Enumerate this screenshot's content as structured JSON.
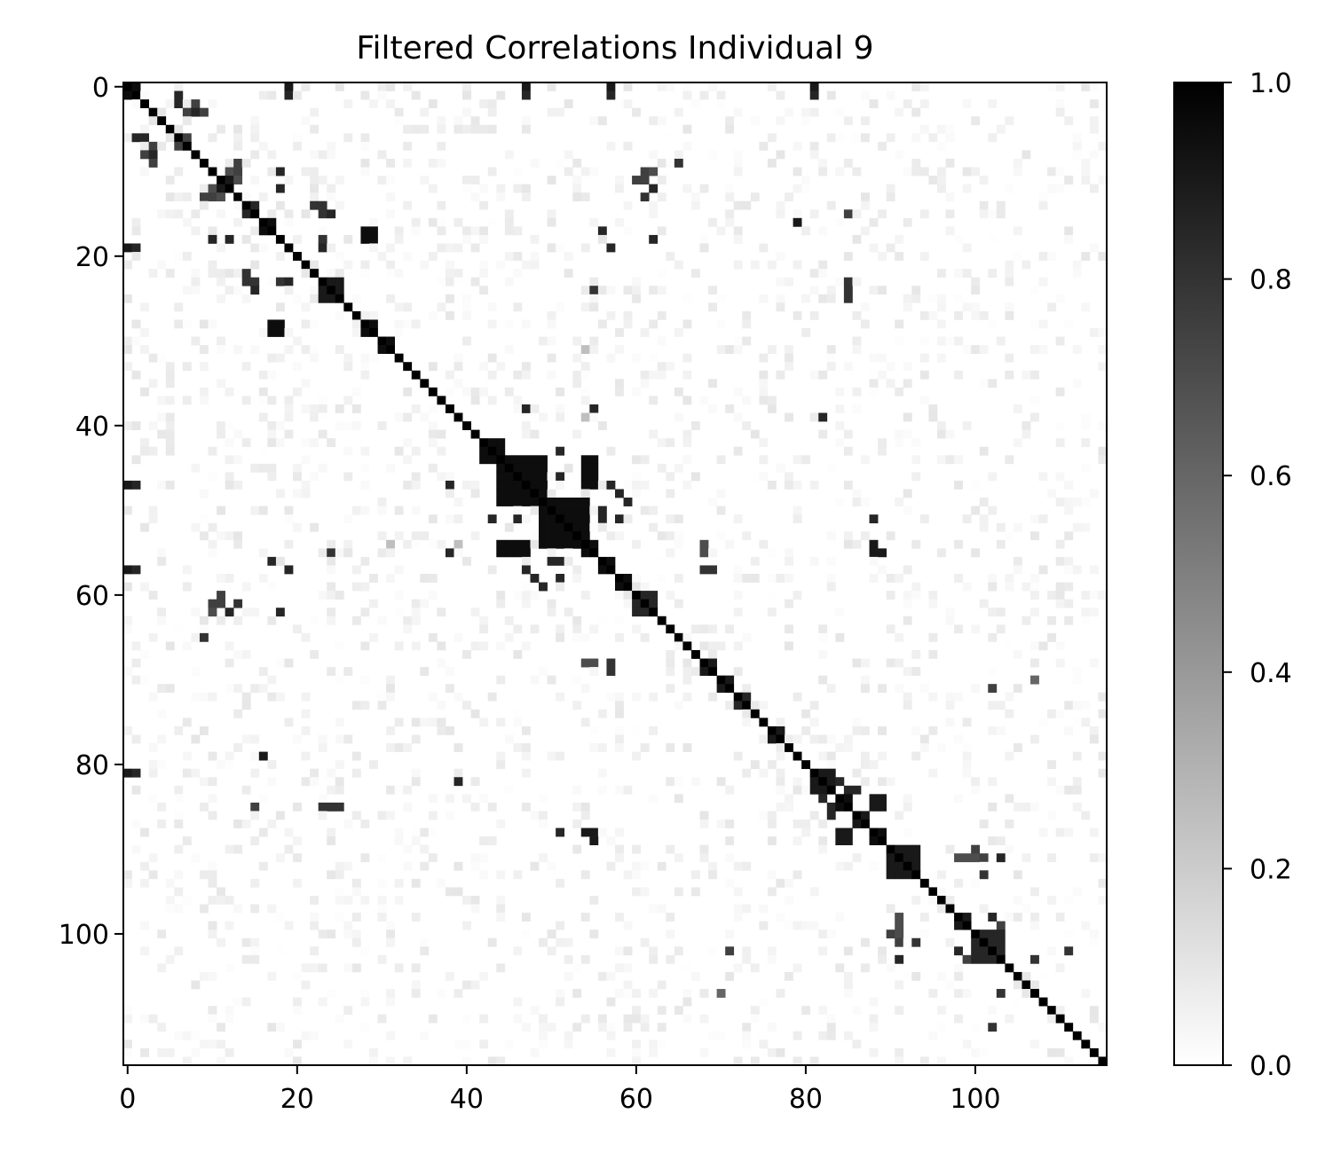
{
  "chart_data": {
    "type": "heatmap",
    "title": "Filtered Correlations Individual 9",
    "xlabel": "",
    "ylabel": "",
    "size": 116,
    "x_range": [
      0,
      115
    ],
    "y_range": [
      0,
      115
    ],
    "x_ticks": [
      0,
      20,
      40,
      60,
      80,
      100
    ],
    "y_ticks": [
      0,
      20,
      40,
      60,
      80,
      100
    ],
    "diagonal_value": 1.0,
    "colormap": "grayscale (0 = white, 1 = black)",
    "colorbar": {
      "range": [
        0.0,
        1.0
      ],
      "ticks": [
        "0.0",
        "0.2",
        "0.4",
        "0.6",
        "0.8",
        "1.0"
      ],
      "low_color": "#ffffff",
      "high_color": "#000000"
    },
    "blocks": [
      {
        "rows": [
          0,
          1
        ],
        "cols": [
          0,
          1
        ],
        "value": 0.95
      },
      {
        "rows": [
          11,
          12
        ],
        "cols": [
          11,
          12
        ],
        "value": 0.9
      },
      {
        "rows": [
          14,
          15
        ],
        "cols": [
          14,
          15
        ],
        "value": 0.85
      },
      {
        "rows": [
          16,
          17
        ],
        "cols": [
          16,
          17
        ],
        "value": 0.95
      },
      {
        "rows": [
          24,
          25
        ],
        "cols": [
          23,
          25
        ],
        "value": 0.9
      },
      {
        "rows": [
          28,
          29
        ],
        "cols": [
          28,
          29
        ],
        "value": 0.95
      },
      {
        "rows": [
          30,
          31
        ],
        "cols": [
          30,
          31
        ],
        "value": 0.95
      },
      {
        "rows": [
          42,
          44
        ],
        "cols": [
          42,
          44
        ],
        "value": 0.95
      },
      {
        "rows": [
          44,
          49
        ],
        "cols": [
          44,
          49
        ],
        "value": 0.95
      },
      {
        "rows": [
          49,
          54
        ],
        "cols": [
          49,
          54
        ],
        "value": 0.95
      },
      {
        "rows": [
          54,
          55
        ],
        "cols": [
          54,
          55
        ],
        "value": 0.95
      },
      {
        "rows": [
          56,
          57
        ],
        "cols": [
          56,
          57
        ],
        "value": 0.95
      },
      {
        "rows": [
          58,
          59
        ],
        "cols": [
          58,
          59
        ],
        "value": 0.95
      },
      {
        "rows": [
          60,
          62
        ],
        "cols": [
          60,
          62
        ],
        "value": 0.85
      },
      {
        "rows": [
          68,
          69
        ],
        "cols": [
          68,
          69
        ],
        "value": 0.9
      },
      {
        "rows": [
          70,
          71
        ],
        "cols": [
          70,
          71
        ],
        "value": 0.9
      },
      {
        "rows": [
          72,
          73
        ],
        "cols": [
          72,
          73
        ],
        "value": 0.85
      },
      {
        "rows": [
          76,
          77
        ],
        "cols": [
          76,
          77
        ],
        "value": 0.9
      },
      {
        "rows": [
          81,
          83
        ],
        "cols": [
          81,
          83
        ],
        "value": 0.9
      },
      {
        "rows": [
          84,
          85
        ],
        "cols": [
          84,
          85
        ],
        "value": 0.95
      },
      {
        "rows": [
          86,
          87
        ],
        "cols": [
          86,
          87
        ],
        "value": 0.9
      },
      {
        "rows": [
          88,
          89
        ],
        "cols": [
          88,
          89
        ],
        "value": 0.95
      },
      {
        "rows": [
          90,
          93
        ],
        "cols": [
          90,
          93
        ],
        "value": 0.9
      },
      {
        "rows": [
          98,
          99
        ],
        "cols": [
          98,
          99
        ],
        "value": 0.9
      },
      {
        "rows": [
          100,
          103
        ],
        "cols": [
          100,
          103
        ],
        "value": 0.85
      }
    ],
    "offdiag_cells": [
      [
        0,
        19,
        0.9
      ],
      [
        0,
        47,
        0.9
      ],
      [
        0,
        57,
        0.9
      ],
      [
        0,
        81,
        0.9
      ],
      [
        2,
        6,
        0.85
      ],
      [
        3,
        8,
        0.85
      ],
      [
        3,
        9,
        0.75
      ],
      [
        1,
        6,
        0.85
      ],
      [
        7,
        3,
        0.75
      ],
      [
        7,
        6,
        0.75
      ],
      [
        8,
        2,
        0.75
      ],
      [
        9,
        3,
        0.7
      ],
      [
        9,
        13,
        0.75
      ],
      [
        10,
        13,
        0.75
      ],
      [
        10,
        12,
        0.7
      ],
      [
        10,
        61,
        0.7
      ],
      [
        10,
        62,
        0.7
      ],
      [
        9,
        65,
        0.8
      ],
      [
        10,
        18,
        0.8
      ],
      [
        12,
        18,
        0.85
      ],
      [
        13,
        10,
        0.7
      ],
      [
        13,
        11,
        0.7
      ],
      [
        13,
        61,
        0.8
      ],
      [
        14,
        23,
        0.8
      ],
      [
        15,
        24,
        0.85
      ],
      [
        15,
        85,
        0.75
      ],
      [
        16,
        79,
        0.9
      ],
      [
        17,
        28,
        0.95
      ],
      [
        17,
        29,
        0.95
      ],
      [
        18,
        28,
        0.95
      ],
      [
        18,
        29,
        0.95
      ],
      [
        17,
        56,
        0.85
      ],
      [
        18,
        10,
        0.85
      ],
      [
        18,
        12,
        0.85
      ],
      [
        18,
        62,
        0.85
      ],
      [
        19,
        1,
        0.85
      ],
      [
        19,
        23,
        0.85
      ],
      [
        19,
        57,
        0.85
      ],
      [
        22,
        14,
        0.8
      ],
      [
        23,
        15,
        0.8
      ],
      [
        23,
        18,
        0.8
      ],
      [
        23,
        85,
        0.75
      ],
      [
        24,
        55,
        0.8
      ],
      [
        24,
        85,
        0.75
      ],
      [
        25,
        85,
        0.75
      ],
      [
        28,
        17,
        0.9
      ],
      [
        28,
        18,
        0.9
      ],
      [
        29,
        17,
        0.9
      ],
      [
        29,
        18,
        0.9
      ],
      [
        31,
        54,
        0.25
      ],
      [
        38,
        47,
        0.85
      ],
      [
        38,
        55,
        0.85
      ],
      [
        39,
        82,
        0.85
      ],
      [
        47,
        1,
        0.85
      ],
      [
        47,
        38,
        0.85
      ],
      [
        46,
        51,
        0.85
      ],
      [
        47,
        57,
        0.85
      ],
      [
        46,
        54,
        0.95
      ],
      [
        46,
        55,
        0.95
      ],
      [
        47,
        54,
        0.95
      ],
      [
        47,
        55,
        0.95
      ],
      [
        48,
        58,
        0.85
      ],
      [
        49,
        59,
        0.85
      ],
      [
        50,
        56,
        0.85
      ],
      [
        51,
        43,
        0.85
      ],
      [
        51,
        56,
        0.85
      ],
      [
        51,
        88,
        0.85
      ],
      [
        54,
        44,
        0.95
      ],
      [
        54,
        45,
        0.95
      ],
      [
        55,
        44,
        0.95
      ],
      [
        55,
        45,
        0.95
      ],
      [
        54,
        88,
        0.9
      ],
      [
        55,
        88,
        0.9
      ],
      [
        55,
        89,
        0.9
      ],
      [
        54,
        68,
        0.7
      ],
      [
        55,
        68,
        0.7
      ],
      [
        55,
        24,
        0.8
      ],
      [
        55,
        38,
        0.85
      ],
      [
        54,
        39,
        0.25
      ],
      [
        56,
        17,
        0.85
      ],
      [
        57,
        1,
        0.85
      ],
      [
        57,
        19,
        0.85
      ],
      [
        57,
        47,
        0.85
      ],
      [
        57,
        68,
        0.8
      ],
      [
        57,
        69,
        0.8
      ],
      [
        58,
        48,
        0.85
      ],
      [
        58,
        51,
        0.85
      ],
      [
        59,
        49,
        0.85
      ],
      [
        60,
        11,
        0.75
      ],
      [
        61,
        10,
        0.75
      ],
      [
        61,
        11,
        0.75
      ],
      [
        61,
        13,
        0.75
      ],
      [
        62,
        12,
        0.85
      ],
      [
        62,
        18,
        0.85
      ],
      [
        65,
        9,
        0.8
      ],
      [
        68,
        54,
        0.7
      ],
      [
        68,
        55,
        0.7
      ],
      [
        68,
        57,
        0.75
      ],
      [
        69,
        57,
        0.75
      ],
      [
        70,
        107,
        0.55
      ],
      [
        71,
        102,
        0.75
      ],
      [
        79,
        16,
        0.9
      ],
      [
        81,
        1,
        0.85
      ],
      [
        82,
        39,
        0.85
      ],
      [
        85,
        15,
        0.75
      ],
      [
        85,
        23,
        0.8
      ],
      [
        85,
        24,
        0.8
      ],
      [
        85,
        25,
        0.8
      ],
      [
        88,
        51,
        0.85
      ],
      [
        88,
        54,
        0.85
      ],
      [
        88,
        55,
        0.85
      ],
      [
        89,
        55,
        0.85
      ],
      [
        84,
        82,
        0.85
      ],
      [
        83,
        86,
        0.85
      ],
      [
        85,
        83,
        0.85
      ],
      [
        83,
        85,
        0.8
      ],
      [
        84,
        88,
        0.9
      ],
      [
        85,
        88,
        0.9
      ],
      [
        89,
        84,
        0.9
      ],
      [
        89,
        85,
        0.9
      ],
      [
        91,
        98,
        0.7
      ],
      [
        91,
        99,
        0.7
      ],
      [
        91,
        100,
        0.7
      ],
      [
        90,
        100,
        0.75
      ],
      [
        91,
        101,
        0.75
      ],
      [
        91,
        103,
        0.85
      ],
      [
        93,
        101,
        0.75
      ],
      [
        98,
        91,
        0.7
      ],
      [
        99,
        91,
        0.7
      ],
      [
        100,
        90,
        0.75
      ],
      [
        101,
        91,
        0.75
      ],
      [
        101,
        93,
        0.8
      ],
      [
        103,
        91,
        0.85
      ],
      [
        102,
        71,
        0.75
      ],
      [
        102,
        98,
        0.85
      ],
      [
        102,
        111,
        0.8
      ],
      [
        103,
        99,
        0.75
      ],
      [
        103,
        100,
        0.75
      ],
      [
        103,
        107,
        0.75
      ],
      [
        100,
        102,
        0.85
      ],
      [
        101,
        103,
        0.8
      ],
      [
        107,
        70,
        0.6
      ],
      [
        107,
        103,
        0.8
      ],
      [
        111,
        102,
        0.8
      ]
    ],
    "faint_noise": {
      "max_value": 0.1,
      "density": 0.18,
      "seed": 9
    }
  }
}
